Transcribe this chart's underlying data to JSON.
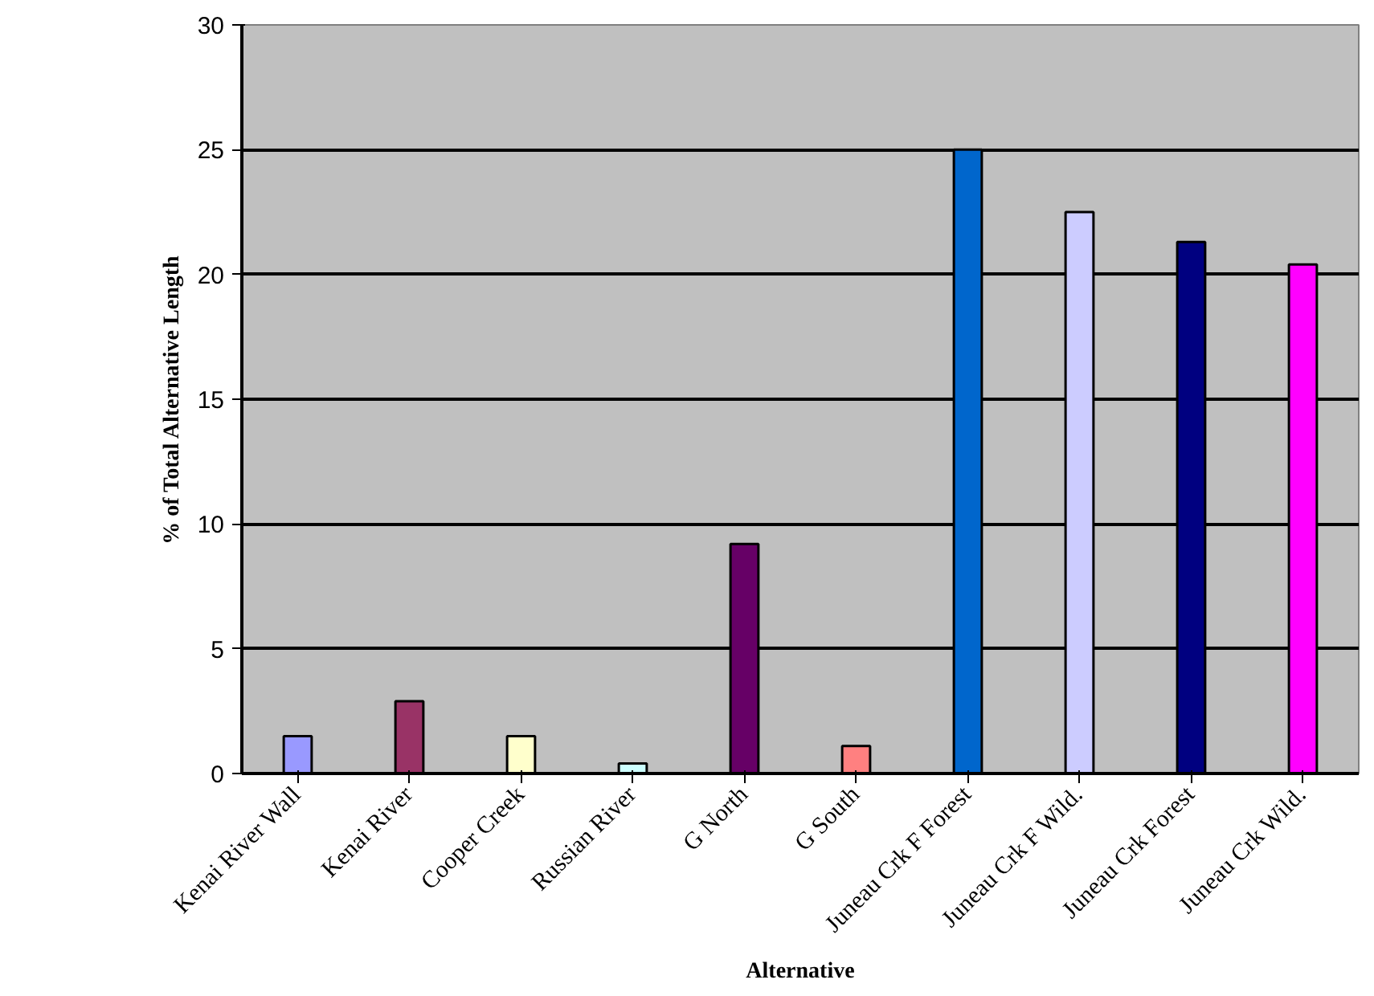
{
  "chart_data": {
    "type": "bar",
    "xlabel": "Alternative",
    "ylabel": "% of Total Alternative Length",
    "categories": [
      "Kenai River Wall",
      "Kenai River",
      "Cooper Creek",
      "Russian River",
      "G North",
      "G South",
      "Juneau Crk F Forest",
      "Juneau Crk F Wild.",
      "Juneau Crk Forest",
      "Juneau Crk Wild."
    ],
    "values": [
      1.5,
      2.9,
      1.5,
      0.4,
      9.2,
      1.1,
      25.0,
      22.5,
      21.3,
      20.4
    ],
    "colors": [
      "#9999ff",
      "#993366",
      "#ffffcc",
      "#ccffff",
      "#660066",
      "#ff8080",
      "#0066cc",
      "#ccccff",
      "#000080",
      "#ff00ff"
    ],
    "ylim": [
      0,
      30
    ],
    "yticks": [
      0,
      5,
      10,
      15,
      20,
      25,
      30
    ],
    "grid": "y"
  }
}
